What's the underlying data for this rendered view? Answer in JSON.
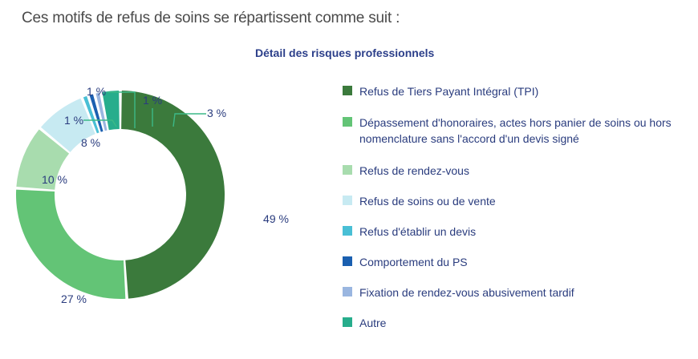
{
  "intro_text": "Ces motifs de refus de soins se répartissent comme suit :",
  "chart_data": {
    "type": "pie",
    "title": "Détail des risques professionnels",
    "series": [
      {
        "name": "Refus de Tiers Payant Intégral (TPI)",
        "value": 49,
        "label": "49 %",
        "color": "#3b7a3c"
      },
      {
        "name": "Dépassement d'honoraires, actes hors panier de soins ou hors nomenclature sans l'accord d'un devis signé",
        "value": 27,
        "label": "27 %",
        "color": "#63c476"
      },
      {
        "name": "Refus de rendez-vous",
        "value": 10,
        "label": "10 %",
        "color": "#a8dcae"
      },
      {
        "name": "Refus de soins ou de vente",
        "value": 8,
        "label": "8 %",
        "color": "#c7eaf2"
      },
      {
        "name": "Refus d'établir un devis",
        "value": 1,
        "label": "1 %",
        "color": "#49bfd5"
      },
      {
        "name": "Comportement du PS",
        "value": 1,
        "label": "1 %",
        "color": "#1a5fb0"
      },
      {
        "name": "Fixation de rendez-vous abusivement tardif",
        "value": 1,
        "label": "1 %",
        "color": "#9ab6e0"
      },
      {
        "name": "Autre",
        "value": 3,
        "label": "3 %",
        "color": "#27ad8c"
      }
    ]
  }
}
